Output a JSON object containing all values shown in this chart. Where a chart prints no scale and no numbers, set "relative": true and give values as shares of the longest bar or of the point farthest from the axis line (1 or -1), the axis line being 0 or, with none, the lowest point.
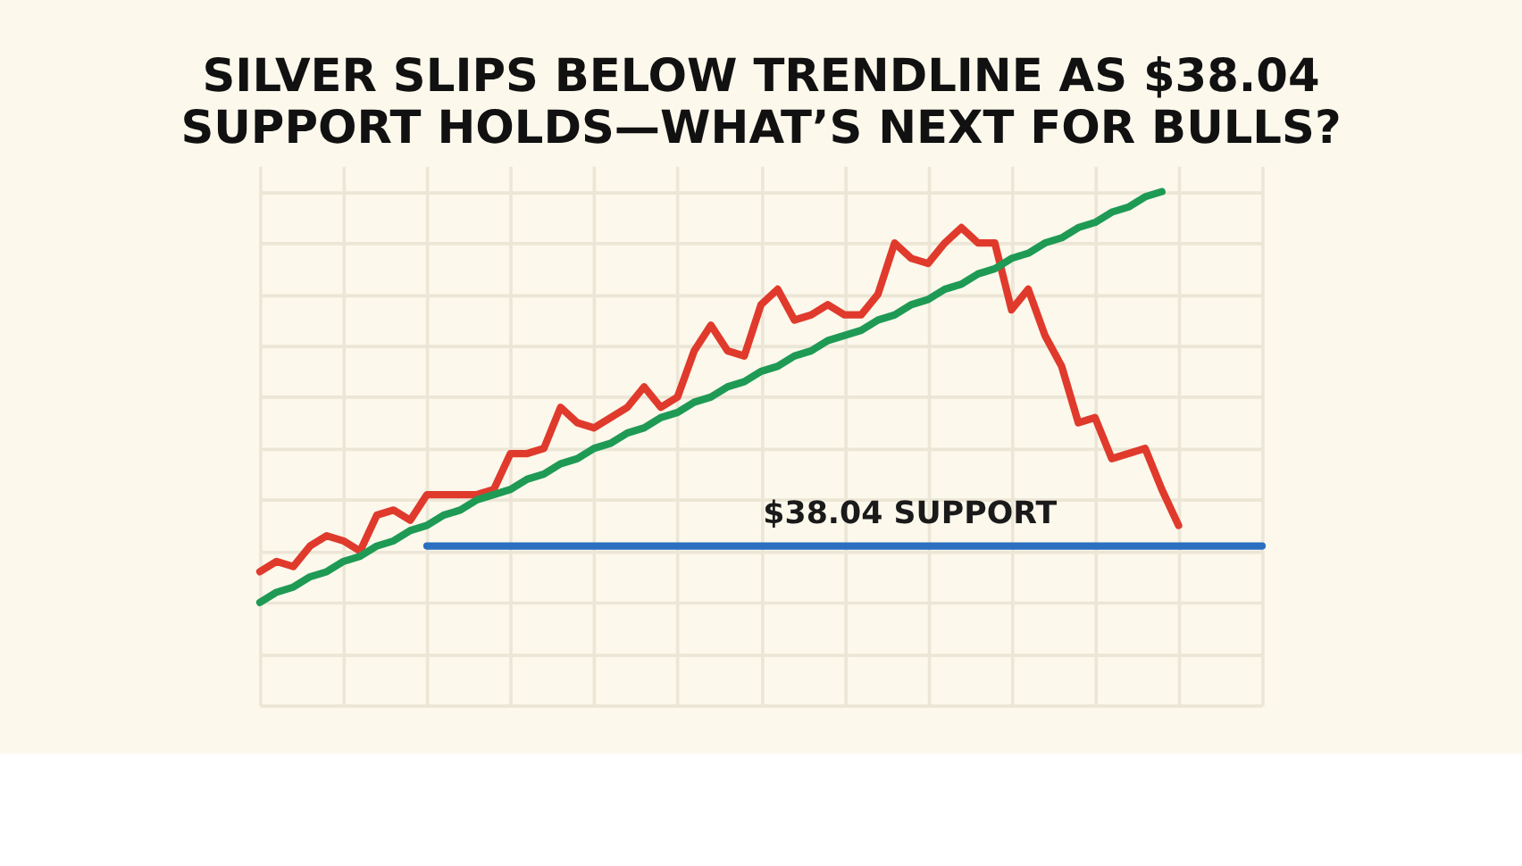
{
  "chart_data": {
    "type": "line",
    "title": "SILVER SLIPS BELOW TRENDLINE AS $38.04 SUPPORT HOLDS—WHAT’S NEXT FOR BULLS?",
    "relative": true,
    "tick_labels": false,
    "grid": true,
    "marker": "none",
    "line_style": "solid",
    "categories": [
      null,
      null,
      null,
      null,
      null,
      null,
      null,
      null,
      null,
      null,
      null,
      null,
      null,
      null,
      null,
      null,
      null,
      null,
      null,
      null,
      null,
      null,
      null,
      null,
      null,
      null,
      null,
      null,
      null,
      null,
      null,
      null,
      null,
      null,
      null,
      null,
      null,
      null,
      null,
      null,
      null,
      null,
      null,
      null,
      null,
      null,
      null,
      null,
      null,
      null,
      null,
      null,
      null,
      null,
      null,
      null,
      null,
      null,
      null,
      null,
      null
    ],
    "series": [
      {
        "color": "#e03a2c",
        "values": [
          0.26,
          0.28,
          0.27,
          0.31,
          0.33,
          0.32,
          0.3,
          0.37,
          0.38,
          0.36,
          0.41,
          0.41,
          0.41,
          0.41,
          0.42,
          0.49,
          0.49,
          0.5,
          0.58,
          0.55,
          0.54,
          0.56,
          0.58,
          0.62,
          0.58,
          0.6,
          0.69,
          0.74,
          0.69,
          0.68,
          0.78,
          0.81,
          0.75,
          0.76,
          0.78,
          0.76,
          0.76,
          0.8,
          0.9,
          0.87,
          0.86,
          0.9,
          0.93,
          0.9,
          0.9,
          0.77,
          0.81,
          0.72,
          0.66,
          0.55,
          0.56,
          0.48,
          0.49,
          0.5,
          0.42,
          0.35,
          null,
          null,
          null,
          null,
          null
        ]
      },
      {
        "color": "#1f9a55",
        "values": [
          0.2,
          0.22,
          0.23,
          0.25,
          0.26,
          0.28,
          0.29,
          0.31,
          0.32,
          0.34,
          0.35,
          0.37,
          0.38,
          0.4,
          0.41,
          0.42,
          0.44,
          0.45,
          0.47,
          0.48,
          0.5,
          0.51,
          0.53,
          0.54,
          0.56,
          0.57,
          0.59,
          0.6,
          0.62,
          0.63,
          0.65,
          0.66,
          0.68,
          0.69,
          0.71,
          0.72,
          0.73,
          0.75,
          0.76,
          0.78,
          0.79,
          0.81,
          0.82,
          0.84,
          0.85,
          0.87,
          0.88,
          0.9,
          0.91,
          0.93,
          0.94,
          0.96,
          0.97,
          0.99,
          1.0,
          null,
          null,
          null,
          null,
          null,
          null
        ]
      },
      {
        "color": "#2a6fc0",
        "values": [
          null,
          null,
          null,
          null,
          null,
          null,
          null,
          null,
          null,
          null,
          0.31,
          0.31,
          0.31,
          0.31,
          0.31,
          0.31,
          0.31,
          0.31,
          0.31,
          0.31,
          0.31,
          0.31,
          0.31,
          0.31,
          0.31,
          0.31,
          0.31,
          0.31,
          0.31,
          0.31,
          0.31,
          0.31,
          0.31,
          0.31,
          0.31,
          0.31,
          0.31,
          0.31,
          0.31,
          0.31,
          0.31,
          0.31,
          0.31,
          0.31,
          0.31,
          0.31,
          0.31,
          0.31,
          0.31,
          0.31,
          0.31,
          0.31,
          0.31,
          0.31,
          0.31,
          0.31,
          0.31,
          0.31,
          0.31,
          0.31,
          0.31
        ]
      }
    ],
    "annotations": [
      "$38.04 SUPPORT"
    ]
  }
}
